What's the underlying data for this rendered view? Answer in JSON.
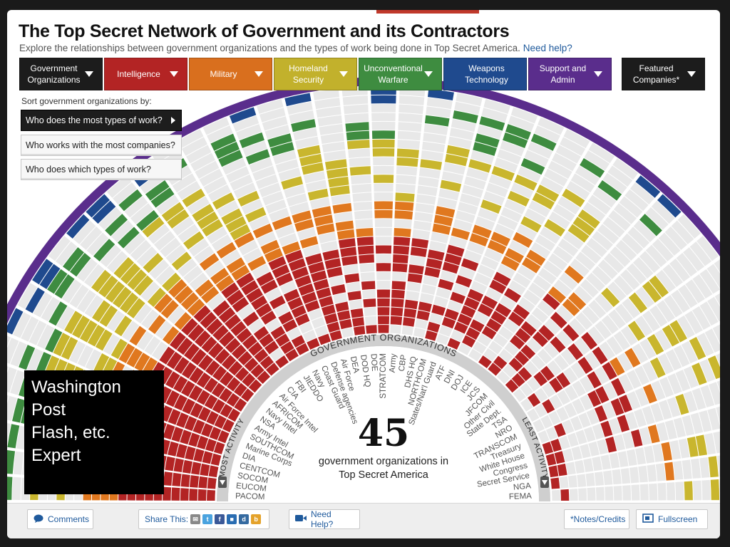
{
  "header": {
    "title": "The Top Secret Network of Government and its Contractors",
    "subtitle": "Explore the relationships between government organizations and the types of work being done in Top Secret America.",
    "help_link": "Need help?"
  },
  "tabs": [
    {
      "line1": "Government",
      "line2": "Organizations",
      "color": "#1c1c1c"
    },
    {
      "line1": "Intelligence",
      "line2": "",
      "color": "#b32424"
    },
    {
      "line1": "Military",
      "line2": "",
      "color": "#d96f1e"
    },
    {
      "line1": "Homeland",
      "line2": "Security",
      "color": "#c2b12c"
    },
    {
      "line1": "Unconventional",
      "line2": "Warfare",
      "color": "#3e8c40"
    },
    {
      "line1": "Weapons",
      "line2": "Technology",
      "color": "#1f4a8e"
    },
    {
      "line1": "Support and",
      "line2": "Admin",
      "color": "#5a2d8c"
    },
    {
      "line1": "Featured",
      "line2": "Companies*",
      "color": "#1c1c1c"
    }
  ],
  "sort": {
    "label": "Sort government organizations by:",
    "options": [
      "Who does the most types of work?",
      "Who works with the most companies?",
      "Who does which types of work?"
    ],
    "active_index": 0
  },
  "center": {
    "arc_label": "GOVERNMENT ORGANIZATIONS",
    "count": "45",
    "caption_line1": "government organizations in",
    "caption_line2": "Top Secret America",
    "most_activity": "MOST ACTIVITY",
    "least_activity": "LEAST ACTIVITY"
  },
  "organizations": [
    "PACOM",
    "EUCOM",
    "SOCOM",
    "CENTCOM",
    "DIA",
    "Marine Corps",
    "SOUTHCOM",
    "Army Intel",
    "NSA",
    "Navy Intel",
    "AFRICOM",
    "Air Force Intel",
    "CIA",
    "FBI",
    "JIEDDO",
    "Navy",
    "Coast Guard",
    "Defense agencies",
    "Air Force",
    "DEA",
    "DOD HQ",
    "DOE",
    "STRATCOM",
    "Army",
    "CBP",
    "DHS HQ",
    "NORTHCOM",
    "States/Nat'l Guard",
    "ATF",
    "DNI",
    "DOJ",
    "ICE",
    "JCS",
    "JFCOM",
    "Other Civil",
    "State Dept.",
    "TSA",
    "NRO",
    "TRANSCOM",
    "Treasury",
    "White House",
    "Congress",
    "Secret Service",
    "NGA",
    "FEMA"
  ],
  "colors": {
    "intelligence": "#b32424",
    "military": "#e0781f",
    "homeland": "#c9b62e",
    "unconventional": "#3e8c40",
    "weapons": "#1f4a8e",
    "support": "#5a2d8c",
    "empty": "#e8e8e8"
  },
  "overlay": {
    "lines": [
      "Washington",
      "Post",
      "Flash, etc.",
      "Expert"
    ]
  },
  "footer": {
    "comments": "Comments",
    "share": "Share This:",
    "need_help": "Need Help?",
    "notes": "*Notes/Credits",
    "fullscreen": "Fullscreen"
  }
}
